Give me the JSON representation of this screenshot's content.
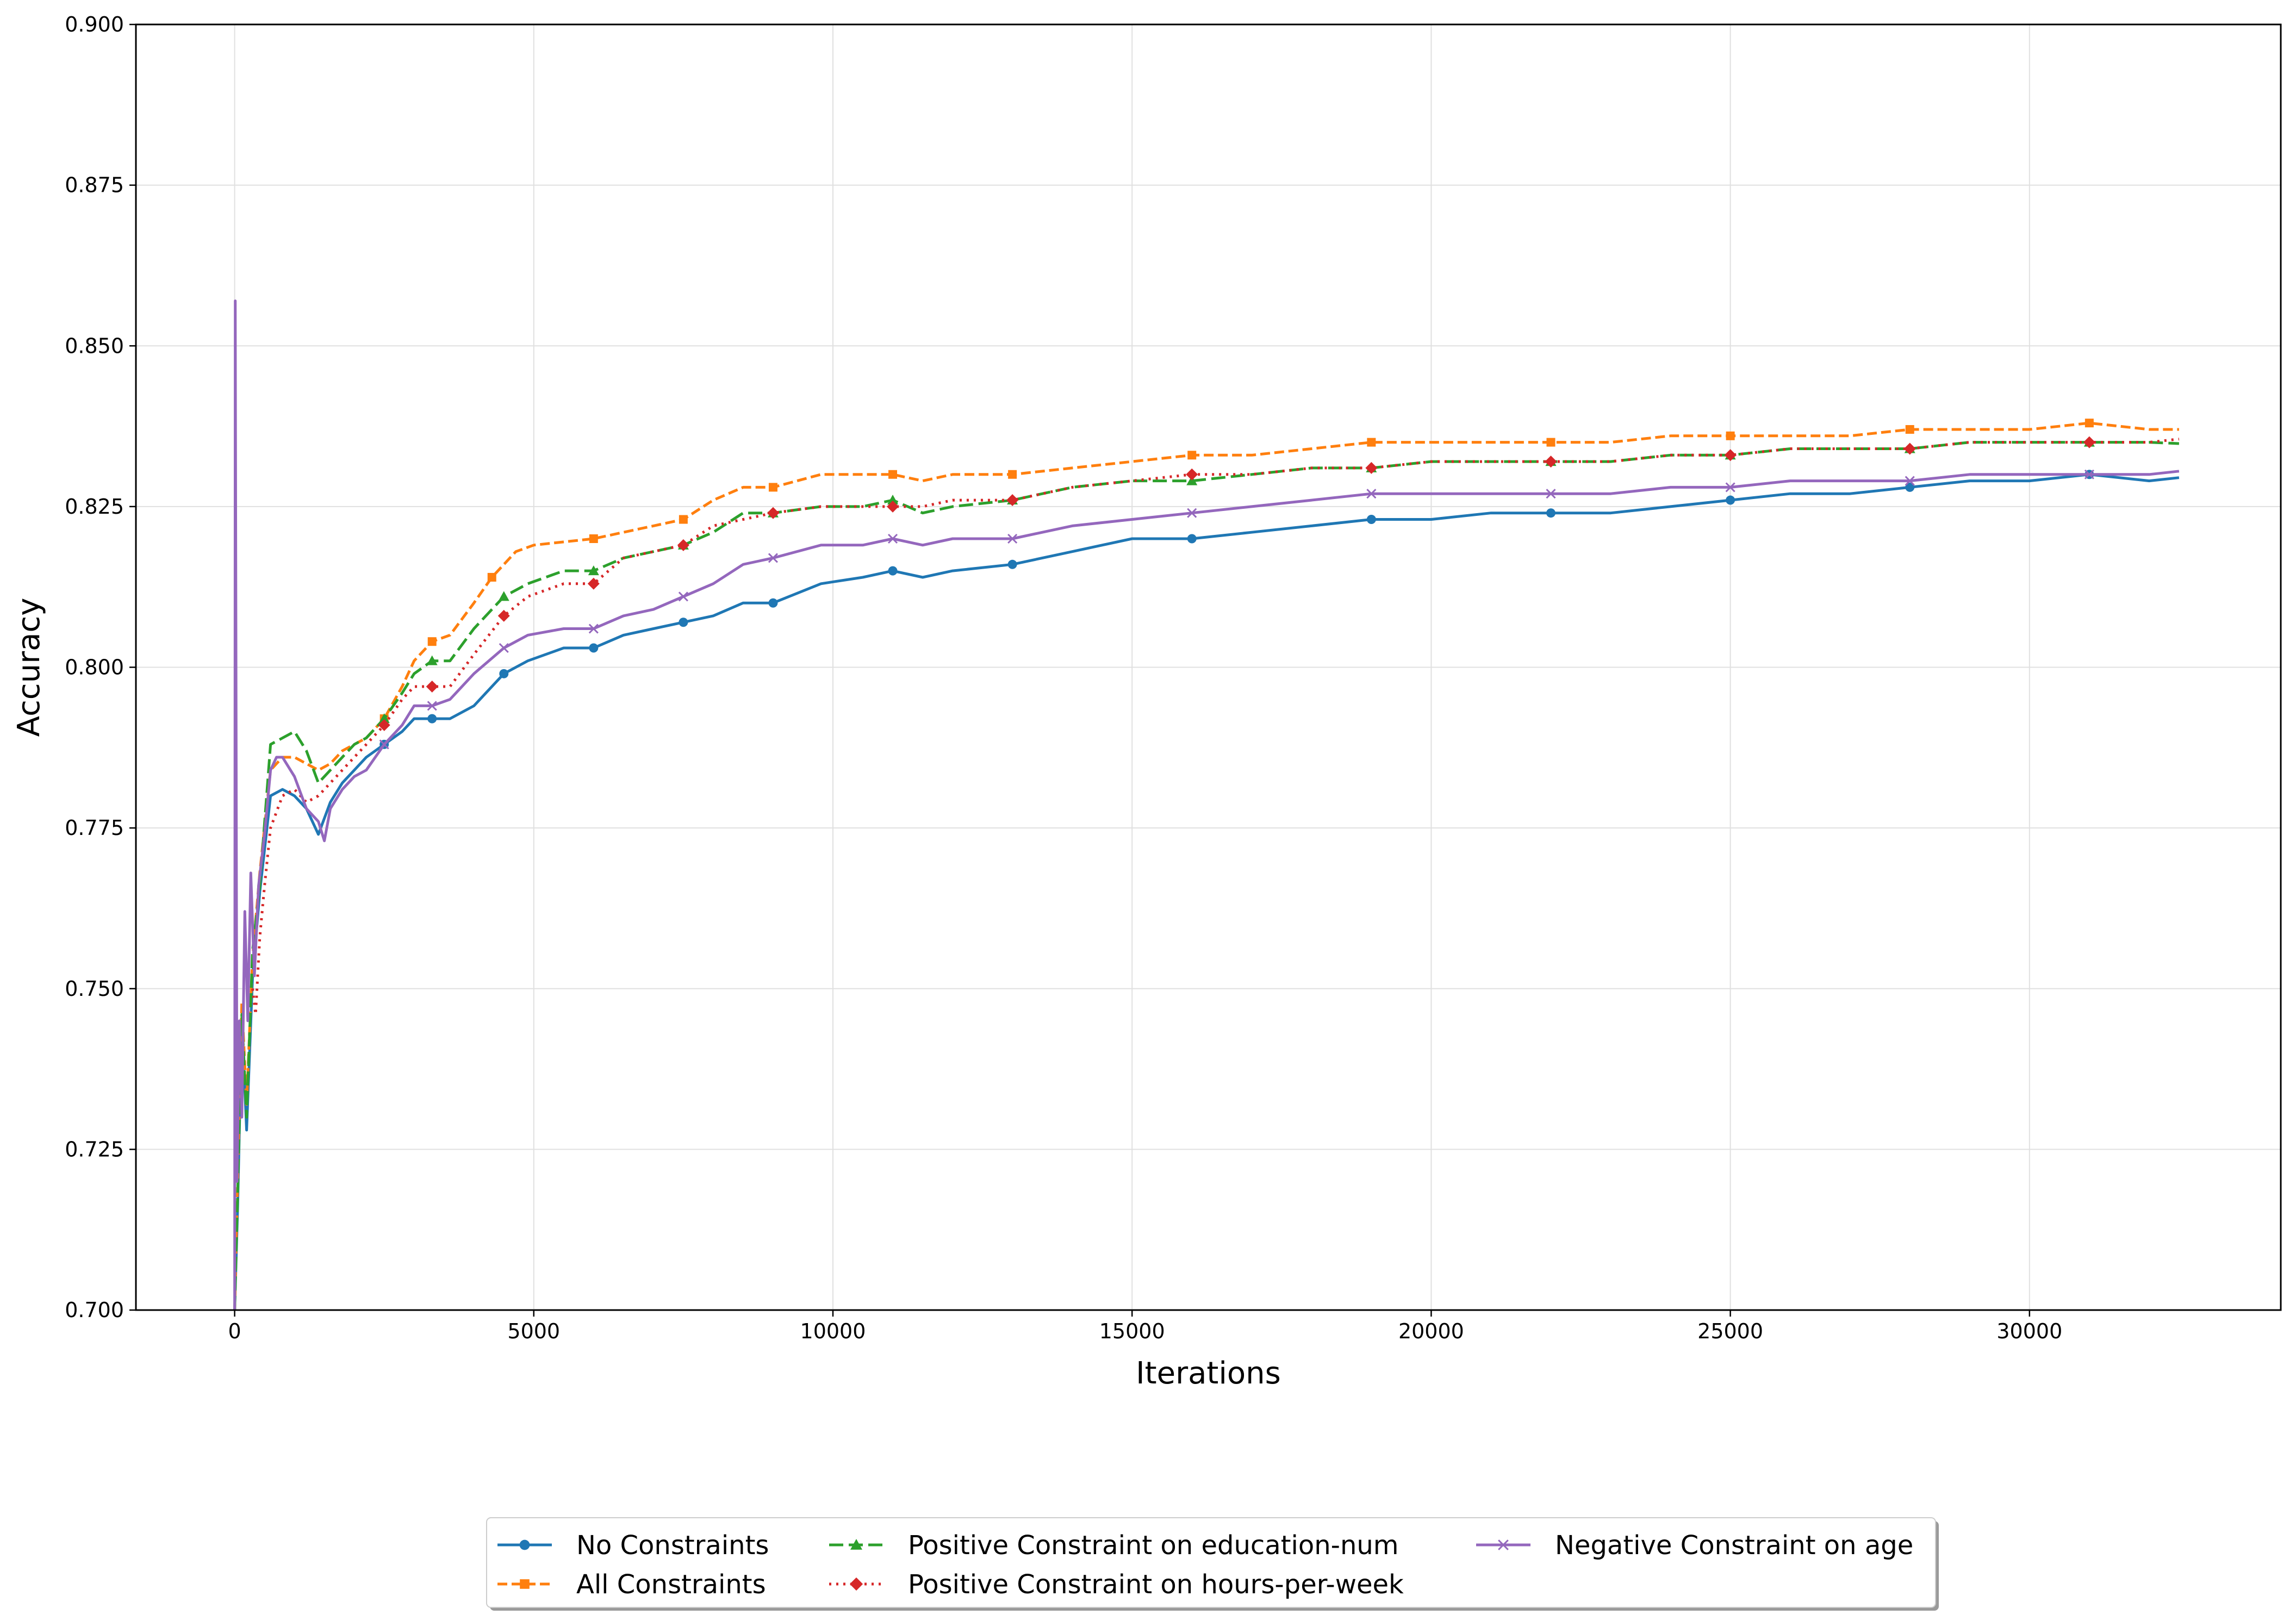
{
  "chart_data": {
    "type": "line",
    "title": "",
    "xlabel": "Iterations",
    "ylabel": "Accuracy",
    "xlim": [
      -1650,
      34200
    ],
    "ylim": [
      0.7,
      0.9
    ],
    "xticks": [
      0,
      5000,
      10000,
      15000,
      20000,
      25000,
      30000
    ],
    "yticks": [
      0.7,
      0.725,
      0.75,
      0.775,
      0.8,
      0.825,
      0.85,
      0.875,
      0.9
    ],
    "ytick_labels": [
      "0.700",
      "0.725",
      "0.750",
      "0.775",
      "0.800",
      "0.825",
      "0.850",
      "0.875",
      "0.900"
    ],
    "grid": true,
    "legend_position": "bottom-center",
    "series": [
      {
        "name": "No Constraints",
        "color": "#1f77b4",
        "dash": "solid",
        "marker": "circle",
        "points": [
          [
            0,
            0.7
          ],
          [
            50,
            0.716
          ],
          [
            120,
            0.745
          ],
          [
            200,
            0.728
          ],
          [
            300,
            0.752
          ],
          [
            420,
            0.765
          ],
          [
            600,
            0.78
          ],
          [
            800,
            0.781
          ],
          [
            1000,
            0.78
          ],
          [
            1200,
            0.778
          ],
          [
            1400,
            0.774
          ],
          [
            1600,
            0.779
          ],
          [
            1800,
            0.782
          ],
          [
            2000,
            0.784
          ],
          [
            2200,
            0.786
          ],
          [
            2500,
            0.788
          ],
          [
            2800,
            0.79
          ],
          [
            3000,
            0.792
          ],
          [
            3300,
            0.792
          ],
          [
            3600,
            0.792
          ],
          [
            4000,
            0.794
          ],
          [
            4500,
            0.799
          ],
          [
            4900,
            0.801
          ],
          [
            5500,
            0.803
          ],
          [
            6000,
            0.803
          ],
          [
            6500,
            0.805
          ],
          [
            7000,
            0.806
          ],
          [
            7500,
            0.807
          ],
          [
            8000,
            0.808
          ],
          [
            8500,
            0.81
          ],
          [
            9000,
            0.81
          ],
          [
            9800,
            0.813
          ],
          [
            10500,
            0.814
          ],
          [
            11000,
            0.815
          ],
          [
            11500,
            0.814
          ],
          [
            12000,
            0.815
          ],
          [
            13000,
            0.816
          ],
          [
            14000,
            0.818
          ],
          [
            15000,
            0.82
          ],
          [
            16000,
            0.82
          ],
          [
            17000,
            0.821
          ],
          [
            18000,
            0.822
          ],
          [
            19000,
            0.823
          ],
          [
            20000,
            0.823
          ],
          [
            21000,
            0.824
          ],
          [
            22000,
            0.824
          ],
          [
            23000,
            0.824
          ],
          [
            24000,
            0.825
          ],
          [
            25000,
            0.826
          ],
          [
            26000,
            0.827
          ],
          [
            27000,
            0.827
          ],
          [
            28000,
            0.828
          ],
          [
            29000,
            0.829
          ],
          [
            30000,
            0.829
          ],
          [
            31000,
            0.83
          ],
          [
            32000,
            0.829
          ],
          [
            32500,
            0.8295
          ]
        ]
      },
      {
        "name": "All Constraints",
        "color": "#ff7f0e",
        "dash": "dashed",
        "marker": "square",
        "points": [
          [
            0,
            0.7
          ],
          [
            50,
            0.72
          ],
          [
            120,
            0.748
          ],
          [
            200,
            0.732
          ],
          [
            300,
            0.755
          ],
          [
            420,
            0.768
          ],
          [
            600,
            0.784
          ],
          [
            800,
            0.786
          ],
          [
            1000,
            0.786
          ],
          [
            1200,
            0.785
          ],
          [
            1400,
            0.784
          ],
          [
            1600,
            0.785
          ],
          [
            1800,
            0.787
          ],
          [
            2000,
            0.788
          ],
          [
            2200,
            0.789
          ],
          [
            2500,
            0.792
          ],
          [
            2800,
            0.797
          ],
          [
            3000,
            0.801
          ],
          [
            3300,
            0.804
          ],
          [
            3600,
            0.805
          ],
          [
            4000,
            0.81
          ],
          [
            4300,
            0.814
          ],
          [
            4700,
            0.818
          ],
          [
            5000,
            0.819
          ],
          [
            6000,
            0.82
          ],
          [
            6500,
            0.821
          ],
          [
            7000,
            0.822
          ],
          [
            7500,
            0.823
          ],
          [
            8000,
            0.826
          ],
          [
            8500,
            0.828
          ],
          [
            9000,
            0.828
          ],
          [
            9800,
            0.83
          ],
          [
            10500,
            0.83
          ],
          [
            11000,
            0.83
          ],
          [
            11500,
            0.829
          ],
          [
            12000,
            0.83
          ],
          [
            13000,
            0.83
          ],
          [
            14000,
            0.831
          ],
          [
            15000,
            0.832
          ],
          [
            16000,
            0.833
          ],
          [
            17000,
            0.833
          ],
          [
            18000,
            0.834
          ],
          [
            19000,
            0.835
          ],
          [
            20000,
            0.835
          ],
          [
            21000,
            0.835
          ],
          [
            22000,
            0.835
          ],
          [
            23000,
            0.835
          ],
          [
            24000,
            0.836
          ],
          [
            25000,
            0.836
          ],
          [
            26000,
            0.836
          ],
          [
            27000,
            0.836
          ],
          [
            28000,
            0.837
          ],
          [
            29000,
            0.837
          ],
          [
            30000,
            0.837
          ],
          [
            31000,
            0.838
          ],
          [
            32000,
            0.837
          ],
          [
            32500,
            0.837
          ]
        ]
      },
      {
        "name": "Positive Constraint on education-num",
        "color": "#2ca02c",
        "dash": "longdash",
        "marker": "triangle",
        "points": [
          [
            0,
            0.7
          ],
          [
            50,
            0.718
          ],
          [
            120,
            0.746
          ],
          [
            200,
            0.73
          ],
          [
            300,
            0.756
          ],
          [
            420,
            0.766
          ],
          [
            600,
            0.788
          ],
          [
            800,
            0.789
          ],
          [
            1000,
            0.79
          ],
          [
            1200,
            0.787
          ],
          [
            1400,
            0.782
          ],
          [
            1600,
            0.784
          ],
          [
            1800,
            0.786
          ],
          [
            2000,
            0.788
          ],
          [
            2200,
            0.789
          ],
          [
            2500,
            0.792
          ],
          [
            2800,
            0.796
          ],
          [
            3000,
            0.799
          ],
          [
            3300,
            0.801
          ],
          [
            3600,
            0.801
          ],
          [
            4000,
            0.806
          ],
          [
            4500,
            0.811
          ],
          [
            4900,
            0.813
          ],
          [
            5500,
            0.815
          ],
          [
            6000,
            0.815
          ],
          [
            6500,
            0.817
          ],
          [
            7000,
            0.818
          ],
          [
            7500,
            0.819
          ],
          [
            8000,
            0.821
          ],
          [
            8500,
            0.824
          ],
          [
            9000,
            0.824
          ],
          [
            9800,
            0.825
          ],
          [
            10500,
            0.825
          ],
          [
            11000,
            0.826
          ],
          [
            11500,
            0.824
          ],
          [
            12000,
            0.825
          ],
          [
            13000,
            0.826
          ],
          [
            14000,
            0.828
          ],
          [
            15000,
            0.829
          ],
          [
            16000,
            0.829
          ],
          [
            17000,
            0.83
          ],
          [
            18000,
            0.831
          ],
          [
            19000,
            0.831
          ],
          [
            20000,
            0.832
          ],
          [
            21000,
            0.832
          ],
          [
            22000,
            0.832
          ],
          [
            23000,
            0.832
          ],
          [
            24000,
            0.833
          ],
          [
            25000,
            0.833
          ],
          [
            26000,
            0.834
          ],
          [
            27000,
            0.834
          ],
          [
            28000,
            0.834
          ],
          [
            29000,
            0.835
          ],
          [
            30000,
            0.835
          ],
          [
            31000,
            0.835
          ],
          [
            32000,
            0.835
          ],
          [
            32500,
            0.8348
          ]
        ]
      },
      {
        "name": "Positive Constraint on hours-per-week",
        "color": "#d62728",
        "dash": "dotted",
        "marker": "diamond",
        "points": [
          [
            300,
            0.75
          ],
          [
            350,
            0.746
          ],
          [
            420,
            0.758
          ],
          [
            500,
            0.766
          ],
          [
            600,
            0.775
          ],
          [
            800,
            0.78
          ],
          [
            1000,
            0.781
          ],
          [
            1200,
            0.779
          ],
          [
            1400,
            0.78
          ],
          [
            1600,
            0.782
          ],
          [
            1800,
            0.784
          ],
          [
            2000,
            0.786
          ],
          [
            2200,
            0.788
          ],
          [
            2500,
            0.791
          ],
          [
            2800,
            0.795
          ],
          [
            3000,
            0.797
          ],
          [
            3300,
            0.797
          ],
          [
            3600,
            0.797
          ],
          [
            4000,
            0.802
          ],
          [
            4500,
            0.808
          ],
          [
            4900,
            0.811
          ],
          [
            5500,
            0.813
          ],
          [
            6000,
            0.813
          ],
          [
            6500,
            0.817
          ],
          [
            7000,
            0.818
          ],
          [
            7500,
            0.819
          ],
          [
            8000,
            0.822
          ],
          [
            8500,
            0.823
          ],
          [
            9000,
            0.824
          ],
          [
            9800,
            0.825
          ],
          [
            10500,
            0.825
          ],
          [
            11000,
            0.825
          ],
          [
            11500,
            0.825
          ],
          [
            12000,
            0.826
          ],
          [
            13000,
            0.826
          ],
          [
            14000,
            0.828
          ],
          [
            15000,
            0.829
          ],
          [
            16000,
            0.83
          ],
          [
            17000,
            0.83
          ],
          [
            18000,
            0.831
          ],
          [
            19000,
            0.831
          ],
          [
            20000,
            0.832
          ],
          [
            21000,
            0.832
          ],
          [
            22000,
            0.832
          ],
          [
            23000,
            0.832
          ],
          [
            24000,
            0.833
          ],
          [
            25000,
            0.833
          ],
          [
            26000,
            0.834
          ],
          [
            27000,
            0.834
          ],
          [
            28000,
            0.834
          ],
          [
            29000,
            0.835
          ],
          [
            30000,
            0.835
          ],
          [
            31000,
            0.835
          ],
          [
            32000,
            0.835
          ],
          [
            32500,
            0.8355
          ]
        ]
      },
      {
        "name": "Negative Constraint on age",
        "color": "#9467bd",
        "dash": "solid",
        "marker": "x",
        "points": [
          [
            0,
            0.7
          ],
          [
            10,
            0.857
          ],
          [
            40,
            0.72
          ],
          [
            80,
            0.745
          ],
          [
            120,
            0.73
          ],
          [
            170,
            0.762
          ],
          [
            220,
            0.745
          ],
          [
            270,
            0.768
          ],
          [
            330,
            0.752
          ],
          [
            400,
            0.766
          ],
          [
            500,
            0.774
          ],
          [
            600,
            0.784
          ],
          [
            700,
            0.786
          ],
          [
            800,
            0.786
          ],
          [
            1000,
            0.783
          ],
          [
            1200,
            0.778
          ],
          [
            1400,
            0.776
          ],
          [
            1500,
            0.773
          ],
          [
            1600,
            0.778
          ],
          [
            1800,
            0.781
          ],
          [
            2000,
            0.783
          ],
          [
            2200,
            0.784
          ],
          [
            2500,
            0.788
          ],
          [
            2800,
            0.791
          ],
          [
            3000,
            0.794
          ],
          [
            3300,
            0.794
          ],
          [
            3600,
            0.795
          ],
          [
            4000,
            0.799
          ],
          [
            4500,
            0.803
          ],
          [
            4900,
            0.805
          ],
          [
            5500,
            0.806
          ],
          [
            6000,
            0.806
          ],
          [
            6500,
            0.808
          ],
          [
            7000,
            0.809
          ],
          [
            7500,
            0.811
          ],
          [
            8000,
            0.813
          ],
          [
            8500,
            0.816
          ],
          [
            9000,
            0.817
          ],
          [
            9800,
            0.819
          ],
          [
            10500,
            0.819
          ],
          [
            11000,
            0.82
          ],
          [
            11500,
            0.819
          ],
          [
            12000,
            0.82
          ],
          [
            13000,
            0.82
          ],
          [
            14000,
            0.822
          ],
          [
            15000,
            0.823
          ],
          [
            16000,
            0.824
          ],
          [
            17000,
            0.825
          ],
          [
            18000,
            0.826
          ],
          [
            19000,
            0.827
          ],
          [
            20000,
            0.827
          ],
          [
            21000,
            0.827
          ],
          [
            22000,
            0.827
          ],
          [
            23000,
            0.827
          ],
          [
            24000,
            0.828
          ],
          [
            25000,
            0.828
          ],
          [
            26000,
            0.829
          ],
          [
            27000,
            0.829
          ],
          [
            28000,
            0.829
          ],
          [
            29000,
            0.83
          ],
          [
            30000,
            0.83
          ],
          [
            31000,
            0.83
          ],
          [
            32000,
            0.83
          ],
          [
            32500,
            0.8305
          ]
        ]
      }
    ]
  }
}
